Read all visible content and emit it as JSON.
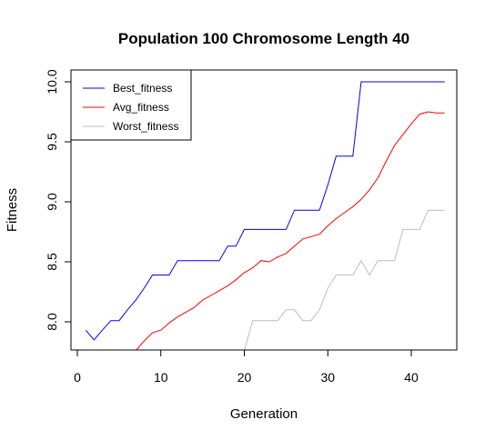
{
  "chart_data": {
    "type": "line",
    "title": "Population 100  Chromosome Length 40",
    "xlabel": "Generation",
    "ylabel": "Fitness",
    "xlim": [
      0,
      45
    ],
    "ylim": [
      7.75,
      10.1
    ],
    "xticks": [
      0,
      10,
      20,
      30,
      40
    ],
    "yticks": [
      8.0,
      8.5,
      9.0,
      9.5,
      10.0
    ],
    "xtick_labels": [
      "0",
      "10",
      "20",
      "30",
      "40"
    ],
    "ytick_labels": [
      "8.0",
      "8.5",
      "9.0",
      "9.5",
      "10.0"
    ],
    "legend_position": "top-left",
    "grid": false,
    "series": [
      {
        "name": "Best_fitness",
        "color": "#0000ff",
        "x": [
          1,
          2,
          3,
          4,
          5,
          6,
          7,
          8,
          9,
          10,
          11,
          12,
          13,
          14,
          15,
          16,
          17,
          18,
          19,
          20,
          21,
          22,
          23,
          24,
          25,
          26,
          27,
          28,
          29,
          30,
          31,
          32,
          33,
          34,
          35,
          36,
          37,
          38,
          39,
          40,
          41,
          42,
          43,
          44
        ],
        "y": [
          7.93,
          7.85,
          7.93,
          8.01,
          8.01,
          8.1,
          8.18,
          8.28,
          8.39,
          8.39,
          8.39,
          8.51,
          8.51,
          8.51,
          8.51,
          8.51,
          8.51,
          8.63,
          8.63,
          8.77,
          8.77,
          8.77,
          8.77,
          8.77,
          8.77,
          8.93,
          8.93,
          8.93,
          8.93,
          9.14,
          9.38,
          9.38,
          9.38,
          10.0,
          10.0,
          10.0,
          10.0,
          10.0,
          10.0,
          10.0,
          10.0,
          10.0,
          10.0,
          10.0
        ]
      },
      {
        "name": "Avg_fitness",
        "color": "#ff0000",
        "x": [
          7,
          8,
          9,
          10,
          11,
          12,
          13,
          14,
          15,
          16,
          17,
          18,
          19,
          20,
          21,
          22,
          23,
          24,
          25,
          26,
          27,
          28,
          29,
          30,
          31,
          32,
          33,
          34,
          35,
          36,
          37,
          38,
          39,
          40,
          41,
          42,
          43,
          44
        ],
        "y": [
          7.76,
          7.84,
          7.91,
          7.93,
          7.99,
          8.04,
          8.08,
          8.12,
          8.18,
          8.22,
          8.26,
          8.3,
          8.35,
          8.41,
          8.45,
          8.51,
          8.5,
          8.54,
          8.57,
          8.63,
          8.69,
          8.71,
          8.73,
          8.8,
          8.86,
          8.91,
          8.96,
          9.02,
          9.1,
          9.2,
          9.34,
          9.47,
          9.56,
          9.65,
          9.73,
          9.75,
          9.74,
          9.74
        ]
      },
      {
        "name": "Worst_fitness",
        "color": "#bebebe",
        "x": [
          20,
          21,
          22,
          23,
          24,
          25,
          26,
          27,
          28,
          29,
          30,
          31,
          32,
          33,
          34,
          35,
          36,
          37,
          38,
          39,
          40,
          41,
          42,
          43,
          44
        ],
        "y": [
          7.76,
          8.01,
          8.01,
          8.01,
          8.01,
          8.1,
          8.1,
          8.01,
          8.01,
          8.1,
          8.28,
          8.39,
          8.39,
          8.39,
          8.51,
          8.39,
          8.51,
          8.51,
          8.51,
          8.77,
          8.77,
          8.77,
          8.93,
          8.93,
          8.93
        ]
      }
    ]
  }
}
